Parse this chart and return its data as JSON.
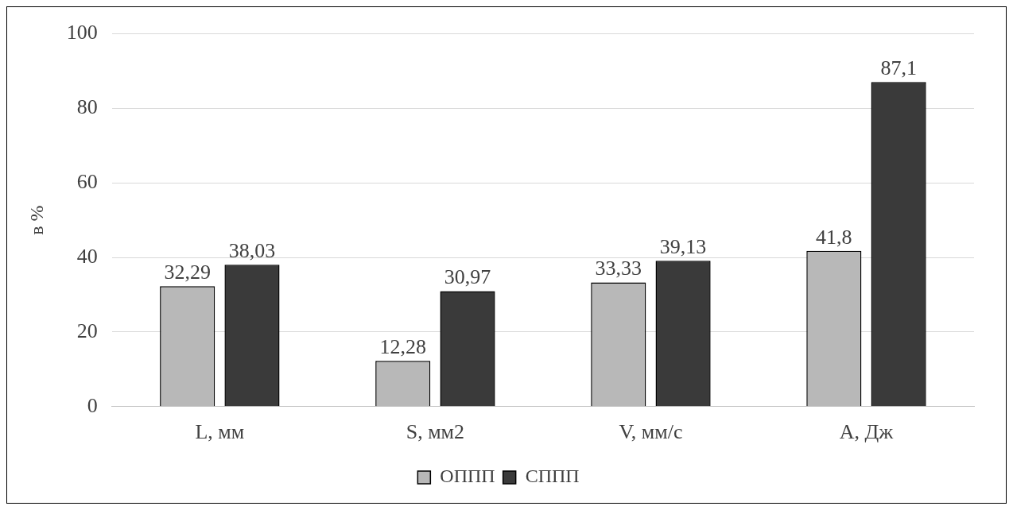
{
  "chart_data": {
    "type": "bar",
    "ylabel": "в %",
    "categories": [
      "L, мм",
      "S, мм2",
      "V, мм/с",
      "A, Дж"
    ],
    "series": [
      {
        "name": "ОППП",
        "color": "#b8b8b8",
        "values": [
          32.29,
          12.28,
          33.33,
          41.8
        ],
        "value_labels": [
          "32,29",
          "12,28",
          "33,33",
          "41,8"
        ]
      },
      {
        "name": "СППП",
        "color": "#3a3a3a",
        "values": [
          38.03,
          30.97,
          39.13,
          87.1
        ],
        "value_labels": [
          "38,03",
          "30,97",
          "39,13",
          "87,1"
        ]
      }
    ],
    "ylim": [
      0,
      100
    ],
    "yticks": [
      0,
      20,
      40,
      60,
      80,
      100
    ],
    "grid": "y",
    "legend": "bottom"
  }
}
